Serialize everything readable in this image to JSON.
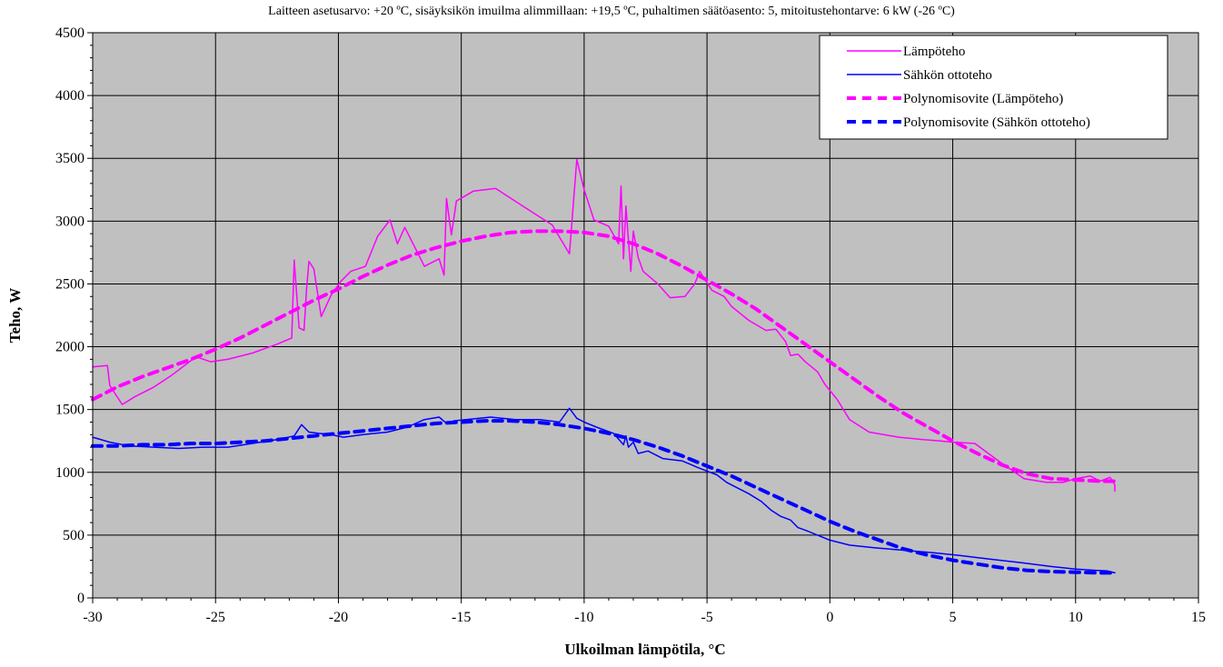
{
  "chart_data": {
    "type": "line",
    "title": "Laitteen asetusarvo: +20 ºC, sisäyksikön imuilma alimmillaan: +19,5 ºC, puhaltimen säätöasento: 5, mitoitustehontarve:  6 kW (-26 ºC)",
    "xlabel": "Ulkoilman lämpötila, °C",
    "ylabel": "Teho, W",
    "xlim": [
      -30,
      15
    ],
    "ylim": [
      0,
      4500
    ],
    "xticks": [
      -30,
      -25,
      -20,
      -15,
      -10,
      -5,
      0,
      5,
      10,
      15
    ],
    "yticks": [
      0,
      500,
      1000,
      1500,
      2000,
      2500,
      3000,
      3500,
      4000,
      4500
    ],
    "grid": true,
    "legend_position": "top-right",
    "series": [
      {
        "name": "Lämpöteho",
        "color": "#ff00ff",
        "style": "solid",
        "x": [
          -30,
          -29.4,
          -29.3,
          -28.8,
          -28.3,
          -27.5,
          -26.8,
          -26.2,
          -25.8,
          -25.2,
          -24.5,
          -23.5,
          -22.5,
          -21.9,
          -21.8,
          -21.6,
          -21.4,
          -21.3,
          -21.2,
          -21.0,
          -20.7,
          -20.3,
          -19.9,
          -19.5,
          -18.9,
          -18.4,
          -17.9,
          -17.6,
          -17.3,
          -16.5,
          -15.9,
          -15.7,
          -15.6,
          -15.4,
          -15.2,
          -14.5,
          -13.6,
          -12.5,
          -11.3,
          -10.6,
          -10.3,
          -10.0,
          -9.6,
          -9.0,
          -8.6,
          -8.5,
          -8.4,
          -8.3,
          -8.2,
          -8.1,
          -8.0,
          -7.8,
          -7.6,
          -7.0,
          -6.5,
          -5.9,
          -5.5,
          -5.3,
          -4.8,
          -4.3,
          -4.0,
          -3.3,
          -2.6,
          -2.2,
          -1.8,
          -1.6,
          -1.3,
          -1.0,
          -0.5,
          -0.2,
          0.3,
          0.8,
          1.6,
          2.8,
          3.8,
          4.5,
          5.0,
          5.9,
          6.8,
          7.9,
          8.8,
          9.5,
          10.0,
          10.6,
          11.0,
          11.4,
          11.5,
          11.6,
          11.6
        ],
        "y": [
          1840,
          1850,
          1690,
          1540,
          1600,
          1680,
          1770,
          1860,
          1920,
          1880,
          1900,
          1950,
          2020,
          2070,
          2690,
          2150,
          2130,
          2450,
          2680,
          2620,
          2240,
          2410,
          2520,
          2600,
          2640,
          2880,
          3010,
          2820,
          2950,
          2640,
          2700,
          2570,
          3180,
          2890,
          3160,
          3240,
          3260,
          3120,
          2970,
          2740,
          3490,
          3250,
          3010,
          2960,
          2820,
          3280,
          2700,
          3120,
          2850,
          2600,
          2920,
          2710,
          2600,
          2500,
          2390,
          2400,
          2500,
          2600,
          2450,
          2400,
          2320,
          2210,
          2130,
          2140,
          2040,
          1930,
          1940,
          1880,
          1800,
          1700,
          1580,
          1420,
          1320,
          1280,
          1260,
          1250,
          1240,
          1230,
          1100,
          950,
          920,
          920,
          950,
          970,
          930,
          960,
          930,
          900,
          850
        ]
      },
      {
        "name": "Sähkön ottoteho",
        "color": "#0000ff",
        "style": "solid",
        "x": [
          -30,
          -29.3,
          -28.5,
          -27.5,
          -26.5,
          -25.5,
          -24.5,
          -23.5,
          -22.5,
          -21.8,
          -21.5,
          -21.2,
          -20.8,
          -20.3,
          -19.8,
          -19.0,
          -18.0,
          -17.2,
          -16.5,
          -15.9,
          -15.6,
          -15.3,
          -14.8,
          -13.8,
          -12.8,
          -11.8,
          -11.0,
          -10.6,
          -10.3,
          -10.0,
          -9.5,
          -8.8,
          -8.4,
          -8.3,
          -8.2,
          -8.0,
          -7.8,
          -7.4,
          -6.8,
          -6.0,
          -5.4,
          -5.0,
          -4.6,
          -4.2,
          -3.8,
          -3.3,
          -2.8,
          -2.4,
          -2.0,
          -1.6,
          -1.3,
          -1.0,
          -0.5,
          0,
          0.8,
          1.8,
          3.0,
          4.2,
          5.2,
          6.5,
          7.8,
          9.0,
          10.0,
          10.8,
          11.3,
          11.6
        ],
        "y": [
          1280,
          1240,
          1210,
          1200,
          1190,
          1200,
          1200,
          1230,
          1260,
          1290,
          1380,
          1320,
          1310,
          1300,
          1280,
          1300,
          1320,
          1360,
          1420,
          1440,
          1390,
          1410,
          1420,
          1440,
          1420,
          1420,
          1400,
          1510,
          1430,
          1400,
          1360,
          1310,
          1220,
          1290,
          1200,
          1240,
          1150,
          1170,
          1110,
          1090,
          1040,
          1010,
          980,
          920,
          880,
          830,
          770,
          700,
          650,
          620,
          560,
          540,
          500,
          460,
          420,
          400,
          380,
          360,
          340,
          310,
          280,
          250,
          230,
          220,
          215,
          200
        ]
      },
      {
        "name": "Polynomisovite (Lämpöteho)",
        "color": "#ff00ff",
        "style": "dashed",
        "x": [
          -30,
          -29,
          -28,
          -27,
          -26,
          -25,
          -24,
          -23,
          -22,
          -21,
          -20,
          -19,
          -18,
          -17,
          -16,
          -15,
          -14,
          -13,
          -12,
          -11,
          -10,
          -9,
          -8,
          -7,
          -6,
          -5,
          -4,
          -3,
          -2,
          -1,
          0,
          1,
          2,
          3,
          4,
          5,
          6,
          7,
          8,
          9,
          10,
          11,
          11.6
        ],
        "y": [
          1580,
          1680,
          1760,
          1830,
          1900,
          1980,
          2070,
          2170,
          2270,
          2370,
          2460,
          2560,
          2650,
          2730,
          2790,
          2840,
          2880,
          2910,
          2920,
          2920,
          2910,
          2880,
          2820,
          2740,
          2640,
          2530,
          2420,
          2300,
          2160,
          2020,
          1880,
          1740,
          1600,
          1470,
          1360,
          1250,
          1150,
          1060,
          990,
          950,
          940,
          930,
          930
        ]
      },
      {
        "name": "Polynomisovite (Sähkön ottoteho)",
        "color": "#0000ff",
        "style": "dashed",
        "x": [
          -30,
          -29,
          -28,
          -27,
          -26,
          -25,
          -24,
          -23,
          -22,
          -21,
          -20,
          -19,
          -18,
          -17,
          -16,
          -15,
          -14,
          -13,
          -12,
          -11,
          -10,
          -9,
          -8,
          -7,
          -6,
          -5,
          -4,
          -3,
          -2,
          -1,
          0,
          1,
          2,
          3,
          4,
          5,
          6,
          7,
          8,
          9,
          10,
          11,
          11.6
        ],
        "y": [
          1210,
          1210,
          1220,
          1220,
          1230,
          1230,
          1240,
          1250,
          1270,
          1290,
          1310,
          1330,
          1350,
          1370,
          1390,
          1400,
          1410,
          1410,
          1400,
          1380,
          1350,
          1310,
          1260,
          1200,
          1130,
          1050,
          970,
          880,
          790,
          700,
          610,
          530,
          460,
          390,
          340,
          300,
          270,
          240,
          220,
          210,
          205,
          200,
          200
        ]
      }
    ]
  }
}
